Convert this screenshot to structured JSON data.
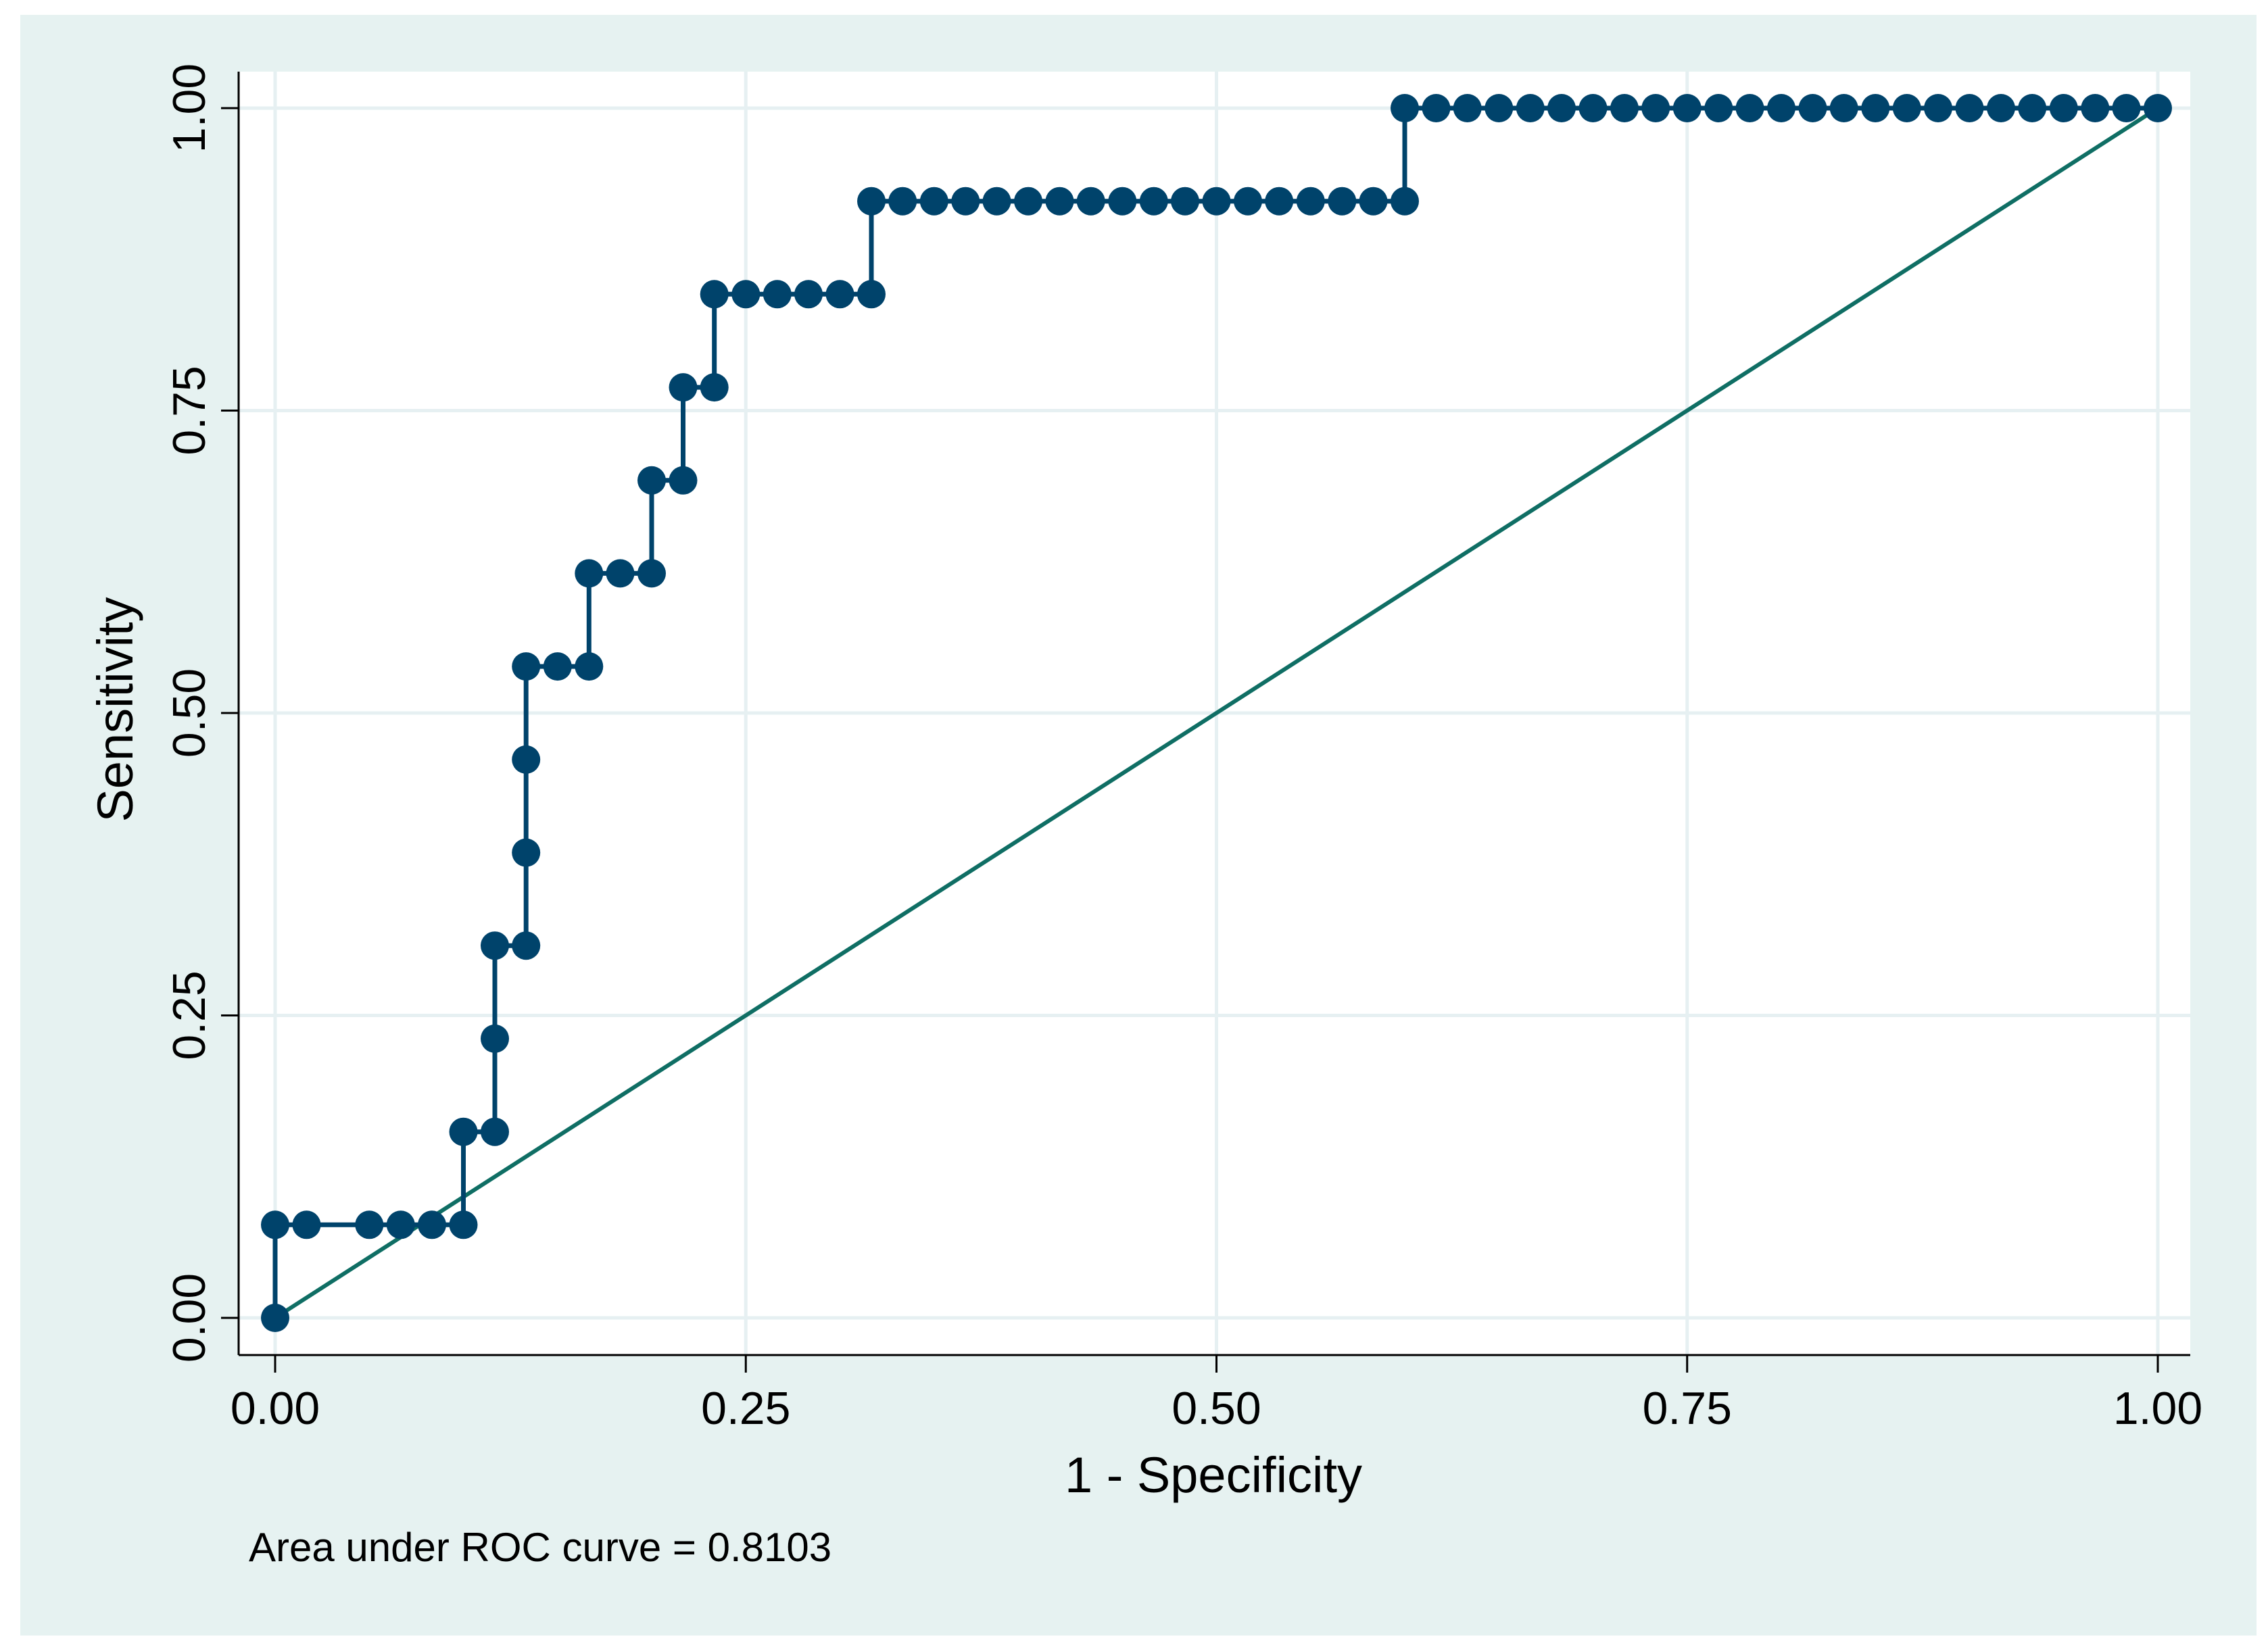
{
  "chart_data": {
    "type": "line",
    "xlabel": "1 - Specificity",
    "ylabel": "Sensitivity",
    "note": "Area under ROC curve = 0.8103",
    "xlim": [
      0,
      1
    ],
    "ylim": [
      0,
      1
    ],
    "xticks": [
      {
        "value": 0,
        "label": "0.00"
      },
      {
        "value": 0.25,
        "label": "0.25"
      },
      {
        "value": 0.5,
        "label": "0.50"
      },
      {
        "value": 0.75,
        "label": "0.75"
      },
      {
        "value": 1,
        "label": "1.00"
      }
    ],
    "yticks": [
      {
        "value": 0,
        "label": "0.00"
      },
      {
        "value": 0.25,
        "label": "0.25"
      },
      {
        "value": 0.5,
        "label": "0.50"
      },
      {
        "value": 0.75,
        "label": "0.75"
      },
      {
        "value": 1,
        "label": "1.00"
      }
    ],
    "grid": true,
    "series": [
      {
        "style": "step-markers",
        "color": "#00436b",
        "points": [
          [
            0.0,
            0.0
          ],
          [
            0.0,
            0.0769
          ],
          [
            0.0167,
            0.0769
          ],
          [
            0.05,
            0.0769
          ],
          [
            0.0667,
            0.0769
          ],
          [
            0.0833,
            0.0769
          ],
          [
            0.1,
            0.0769
          ],
          [
            0.1,
            0.1538
          ],
          [
            0.1167,
            0.1538
          ],
          [
            0.1167,
            0.2308
          ],
          [
            0.1167,
            0.3077
          ],
          [
            0.1333,
            0.3077
          ],
          [
            0.1333,
            0.3846
          ],
          [
            0.1333,
            0.4615
          ],
          [
            0.1333,
            0.5385
          ],
          [
            0.15,
            0.5385
          ],
          [
            0.1667,
            0.5385
          ],
          [
            0.1667,
            0.6154
          ],
          [
            0.1833,
            0.6154
          ],
          [
            0.2,
            0.6154
          ],
          [
            0.2,
            0.6923
          ],
          [
            0.2167,
            0.6923
          ],
          [
            0.2167,
            0.7692
          ],
          [
            0.2333,
            0.7692
          ],
          [
            0.2333,
            0.8462
          ],
          [
            0.25,
            0.8462
          ],
          [
            0.2667,
            0.8462
          ],
          [
            0.2833,
            0.8462
          ],
          [
            0.3,
            0.8462
          ],
          [
            0.3167,
            0.8462
          ],
          [
            0.3167,
            0.9231
          ],
          [
            0.3333,
            0.9231
          ],
          [
            0.35,
            0.9231
          ],
          [
            0.3667,
            0.9231
          ],
          [
            0.3833,
            0.9231
          ],
          [
            0.4,
            0.9231
          ],
          [
            0.4167,
            0.9231
          ],
          [
            0.4333,
            0.9231
          ],
          [
            0.45,
            0.9231
          ],
          [
            0.4667,
            0.9231
          ],
          [
            0.4833,
            0.9231
          ],
          [
            0.5,
            0.9231
          ],
          [
            0.5167,
            0.9231
          ],
          [
            0.5333,
            0.9231
          ],
          [
            0.55,
            0.9231
          ],
          [
            0.5667,
            0.9231
          ],
          [
            0.5833,
            0.9231
          ],
          [
            0.6,
            0.9231
          ],
          [
            0.6,
            1.0
          ],
          [
            0.6167,
            1.0
          ],
          [
            0.6333,
            1.0
          ],
          [
            0.65,
            1.0
          ],
          [
            0.6667,
            1.0
          ],
          [
            0.6833,
            1.0
          ],
          [
            0.7,
            1.0
          ],
          [
            0.7167,
            1.0
          ],
          [
            0.7333,
            1.0
          ],
          [
            0.75,
            1.0
          ],
          [
            0.7667,
            1.0
          ],
          [
            0.7833,
            1.0
          ],
          [
            0.8,
            1.0
          ],
          [
            0.8167,
            1.0
          ],
          [
            0.8333,
            1.0
          ],
          [
            0.85,
            1.0
          ],
          [
            0.8667,
            1.0
          ],
          [
            0.8833,
            1.0
          ],
          [
            0.9,
            1.0
          ],
          [
            0.9167,
            1.0
          ],
          [
            0.9333,
            1.0
          ],
          [
            0.95,
            1.0
          ],
          [
            0.9667,
            1.0
          ],
          [
            0.9833,
            1.0
          ],
          [
            1.0,
            1.0
          ]
        ]
      },
      {
        "style": "line",
        "color": "#0f6e64",
        "points": [
          [
            0,
            0
          ],
          [
            1,
            1
          ]
        ]
      }
    ]
  },
  "colors": {
    "outer_background": "#e6f2f1",
    "plot_background": "#ffffff",
    "gridline": "#e6f0f2"
  }
}
